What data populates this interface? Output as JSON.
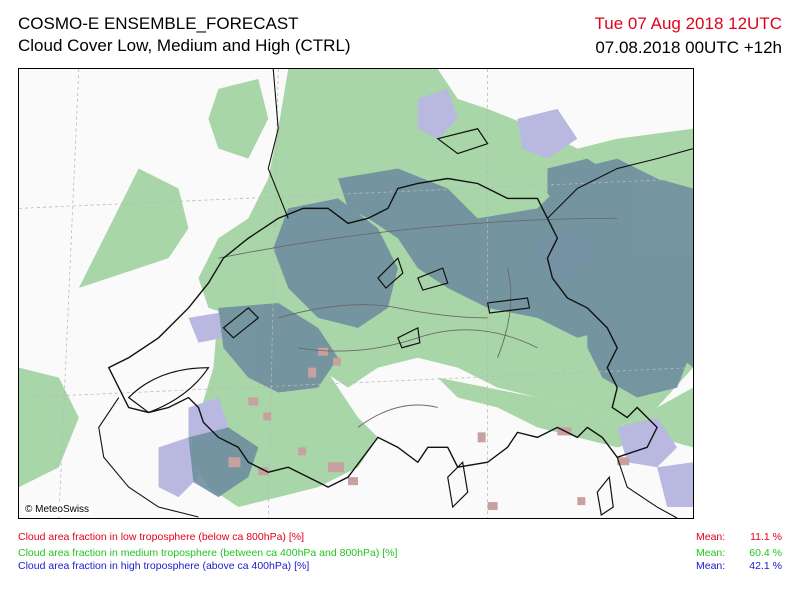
{
  "header": {
    "title": "COSMO-E ENSEMBLE_FORECAST",
    "subtitle": "Cloud Cover Low, Medium and High (CTRL)",
    "valid_time": "Tue 07 Aug 2018 12UTC",
    "run_time": "07.08.2018 00UTC +12h"
  },
  "map": {
    "credit": "© MeteoSwiss"
  },
  "legend": [
    {
      "text": "Cloud area fraction in low troposphere (below ca 800hPa) [%]",
      "color": "#e2001a",
      "mean_label": "Mean:",
      "mean_value": "11.1 %"
    },
    {
      "text": "Cloud area fraction in medium troposphere (between ca 400hPa and 800hPa) [%]",
      "color": "#22c322",
      "mean_label": "Mean:",
      "mean_value": "60.4 %"
    },
    {
      "text": "Cloud area fraction in high troposphere (above ca 400hPa) [%]",
      "color": "#1a1acf",
      "mean_label": "Mean:",
      "mean_value": "42.1 %"
    }
  ],
  "colors": {
    "low_cloud": "#c8a0a0",
    "medium_cloud": "#a8d6a8",
    "high_cloud": "#b8b8e0",
    "overlap_cloud": "#6f8fa0",
    "clear": "#fafafa"
  }
}
